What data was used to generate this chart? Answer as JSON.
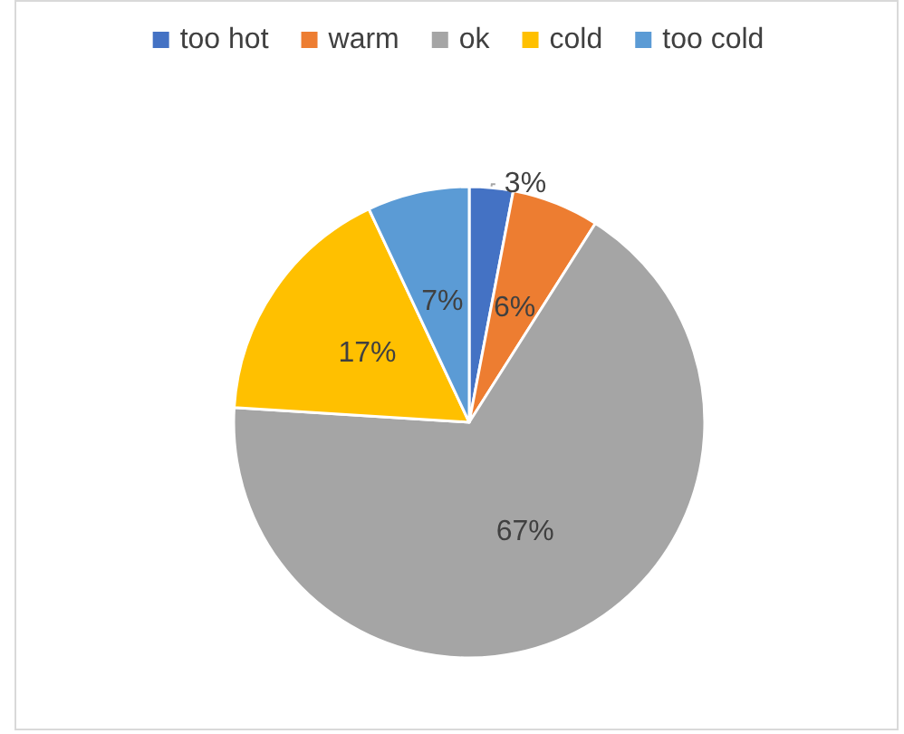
{
  "chart_data": {
    "type": "pie",
    "categories": [
      "too hot",
      "warm",
      "ok",
      "cold",
      "too cold"
    ],
    "values": [
      3,
      6,
      67,
      17,
      7
    ],
    "colors": [
      "#4472c4",
      "#ed7d31",
      "#a5a5a5",
      "#ffc000",
      "#5b9bd5"
    ],
    "value_labels": [
      "3%",
      "6%",
      "67%",
      "17%",
      "7%"
    ],
    "legend": "top"
  }
}
